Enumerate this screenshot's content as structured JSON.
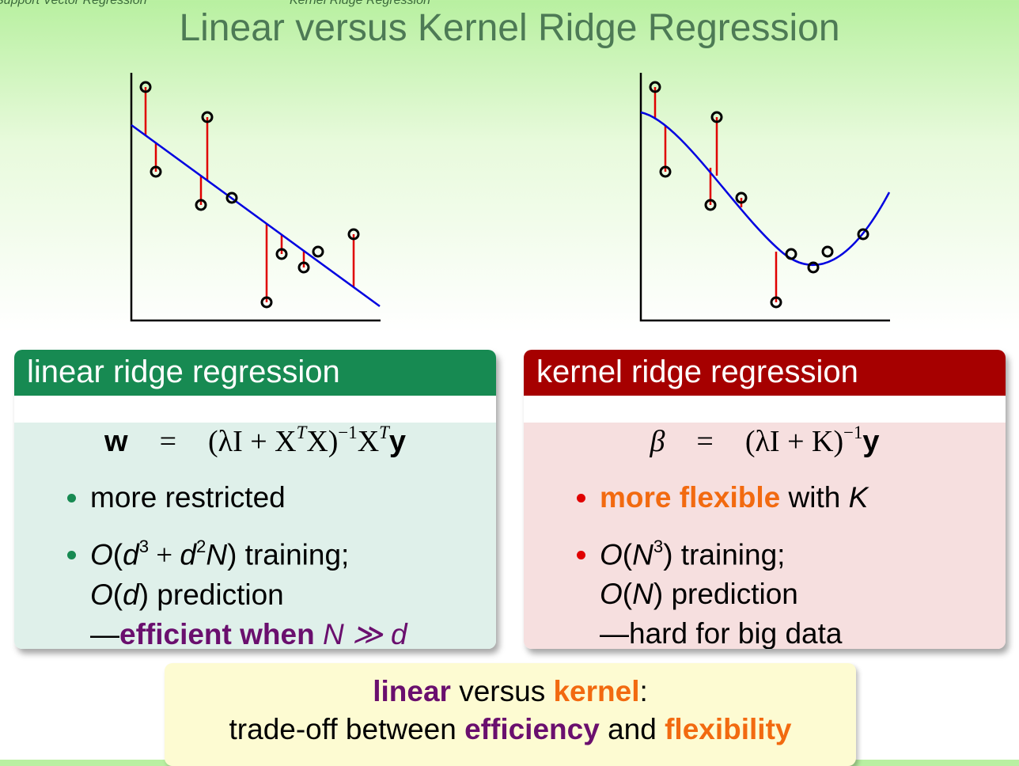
{
  "header": {
    "nav": [
      "Support Vector Regression",
      "Kernel Ridge Regression"
    ],
    "title": "Linear versus Kernel Ridge Regression"
  },
  "panels": [
    {
      "heading": "linear ridge regression",
      "formula": [
        {
          "t": "w",
          "s": "sans bold"
        },
        {
          "t": "=",
          "s": "serif rel"
        },
        {
          "t": "(λI + X",
          "s": "serif"
        },
        {
          "t": "T",
          "s": "serif italic sup"
        },
        {
          "t": "X)",
          "s": "serif"
        },
        {
          "t": "−1",
          "s": "serif sup"
        },
        {
          "t": "X",
          "s": "serif"
        },
        {
          "t": "T",
          "s": "serif italic sup"
        },
        {
          "t": "y",
          "s": "sans bold"
        }
      ],
      "bullets": [
        [
          [
            {
              "t": "more restricted",
              "s": "plain"
            }
          ]
        ],
        [
          [
            {
              "t": "O",
              "s": "italic"
            },
            {
              "t": "(",
              "s": "plain"
            },
            {
              "t": "d",
              "s": "italic"
            },
            {
              "t": "3",
              "s": "sup"
            },
            {
              "t": " + ",
              "s": "serif"
            },
            {
              "t": "d",
              "s": "italic"
            },
            {
              "t": "2",
              "s": "sup"
            },
            {
              "t": "N",
              "s": "italic"
            },
            {
              "t": ") training;",
              "s": "plain"
            }
          ],
          [
            {
              "t": "O",
              "s": "italic"
            },
            {
              "t": "(",
              "s": "plain"
            },
            {
              "t": "d",
              "s": "italic"
            },
            {
              "t": ") prediction",
              "s": "plain"
            }
          ],
          [
            {
              "t": "—",
              "s": "plain"
            },
            {
              "t": "efficient when ",
              "s": "purple bold"
            },
            {
              "t": "N ≫ d",
              "s": "purple italic"
            }
          ]
        ]
      ]
    },
    {
      "heading": "kernel ridge regression",
      "formula": [
        {
          "t": "β",
          "s": "serif italic"
        },
        {
          "t": "=",
          "s": "serif rel"
        },
        {
          "t": "(λI + K)",
          "s": "serif"
        },
        {
          "t": "−1",
          "s": "serif sup"
        },
        {
          "t": "y",
          "s": "sans bold"
        }
      ],
      "bullets": [
        [
          [
            {
              "t": "more flexible",
              "s": "orange bold"
            },
            {
              "t": " with ",
              "s": "plain"
            },
            {
              "t": "K",
              "s": "italic"
            }
          ]
        ],
        [
          [
            {
              "t": "O",
              "s": "italic"
            },
            {
              "t": "(",
              "s": "plain"
            },
            {
              "t": "N",
              "s": "italic"
            },
            {
              "t": "3",
              "s": "sup"
            },
            {
              "t": ") training;",
              "s": "plain"
            }
          ],
          [
            {
              "t": "O",
              "s": "italic"
            },
            {
              "t": "(",
              "s": "plain"
            },
            {
              "t": "N",
              "s": "italic"
            },
            {
              "t": ") prediction",
              "s": "plain"
            }
          ],
          [
            {
              "t": "—hard for big data",
              "s": "plain"
            }
          ]
        ]
      ]
    }
  ],
  "summary": [
    [
      {
        "t": "linear",
        "s": "purple bold"
      },
      {
        "t": " versus ",
        "s": "plain"
      },
      {
        "t": "kernel",
        "s": "orange bold"
      },
      {
        "t": ":",
        "s": "plain"
      }
    ],
    [
      {
        "t": "trade-off between ",
        "s": "plain"
      },
      {
        "t": "efficiency",
        "s": "purple bold"
      },
      {
        "t": " and ",
        "s": "plain"
      },
      {
        "t": "flexibility",
        "s": "orange bold"
      }
    ]
  ]
}
